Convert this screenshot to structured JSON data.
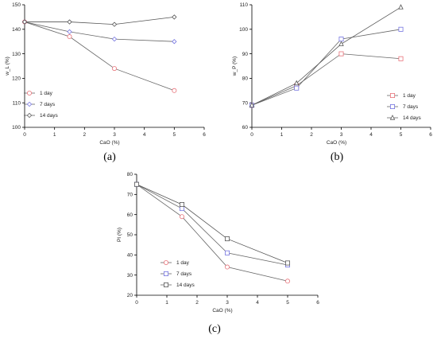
{
  "panels": [
    {
      "id": "a",
      "label": "(a)"
    },
    {
      "id": "b",
      "label": "(b)"
    },
    {
      "id": "c",
      "label": "(c)"
    }
  ],
  "chart_data": [
    {
      "type": "line",
      "panel": "(a)",
      "xlabel": "CaO (%)",
      "ylabel": "w_L (%)",
      "xlim": [
        0,
        6
      ],
      "ylim": [
        100,
        150
      ],
      "xticks": [
        0,
        1,
        2,
        3,
        4,
        5,
        6
      ],
      "yticks": [
        100,
        110,
        120,
        130,
        140,
        150
      ],
      "legend_position": "bottom-left",
      "series": [
        {
          "name": "1 day",
          "marker": "circle",
          "color": "#e8737a",
          "x": [
            0,
            1.5,
            3,
            5
          ],
          "values": [
            143,
            137,
            124,
            115
          ]
        },
        {
          "name": "7 days",
          "marker": "diamond",
          "color": "#7474e0",
          "x": [
            0,
            1.5,
            3,
            5
          ],
          "values": [
            143,
            139,
            136,
            135
          ]
        },
        {
          "name": "14 days",
          "marker": "diamond",
          "color": "#555555",
          "x": [
            0,
            1.5,
            3,
            5
          ],
          "values": [
            143,
            143,
            142,
            145
          ]
        }
      ]
    },
    {
      "type": "line",
      "panel": "(b)",
      "xlabel": "CaO (%)",
      "ylabel": "w_P (%)",
      "xlim": [
        0,
        6
      ],
      "ylim": [
        60,
        110
      ],
      "xticks": [
        0,
        1,
        2,
        3,
        4,
        5,
        6
      ],
      "yticks": [
        60,
        70,
        80,
        90,
        100,
        110
      ],
      "legend_position": "bottom-right",
      "series": [
        {
          "name": "1 day",
          "marker": "square",
          "color": "#e8737a",
          "x": [
            0,
            1.5,
            3,
            5
          ],
          "values": [
            69,
            77,
            90,
            88
          ]
        },
        {
          "name": "7 days",
          "marker": "square",
          "color": "#7474e0",
          "x": [
            0,
            1.5,
            3,
            5
          ],
          "values": [
            69,
            76,
            96,
            100
          ]
        },
        {
          "name": "14 days",
          "marker": "triangle",
          "color": "#555555",
          "x": [
            0,
            1.5,
            3,
            5
          ],
          "values": [
            69,
            78,
            94,
            109
          ]
        }
      ]
    },
    {
      "type": "line",
      "panel": "(c)",
      "xlabel": "CaO (%)",
      "ylabel": "PI (%)",
      "xlim": [
        0,
        6
      ],
      "ylim": [
        20,
        80
      ],
      "xticks": [
        0,
        1,
        2,
        3,
        4,
        5,
        6
      ],
      "yticks": [
        20,
        30,
        40,
        50,
        60,
        70,
        80
      ],
      "legend_position": "bottom-left",
      "series": [
        {
          "name": "1 day",
          "marker": "circle",
          "color": "#e8737a",
          "x": [
            0,
            1.5,
            3,
            5
          ],
          "values": [
            75,
            59,
            34,
            27
          ]
        },
        {
          "name": "7 days",
          "marker": "square",
          "color": "#7474e0",
          "x": [
            0,
            1.5,
            3,
            5
          ],
          "values": [
            75,
            63,
            41,
            35
          ]
        },
        {
          "name": "14 days",
          "marker": "square",
          "color": "#555555",
          "x": [
            0,
            1.5,
            3,
            5
          ],
          "values": [
            75,
            65,
            48,
            36
          ]
        }
      ]
    }
  ]
}
